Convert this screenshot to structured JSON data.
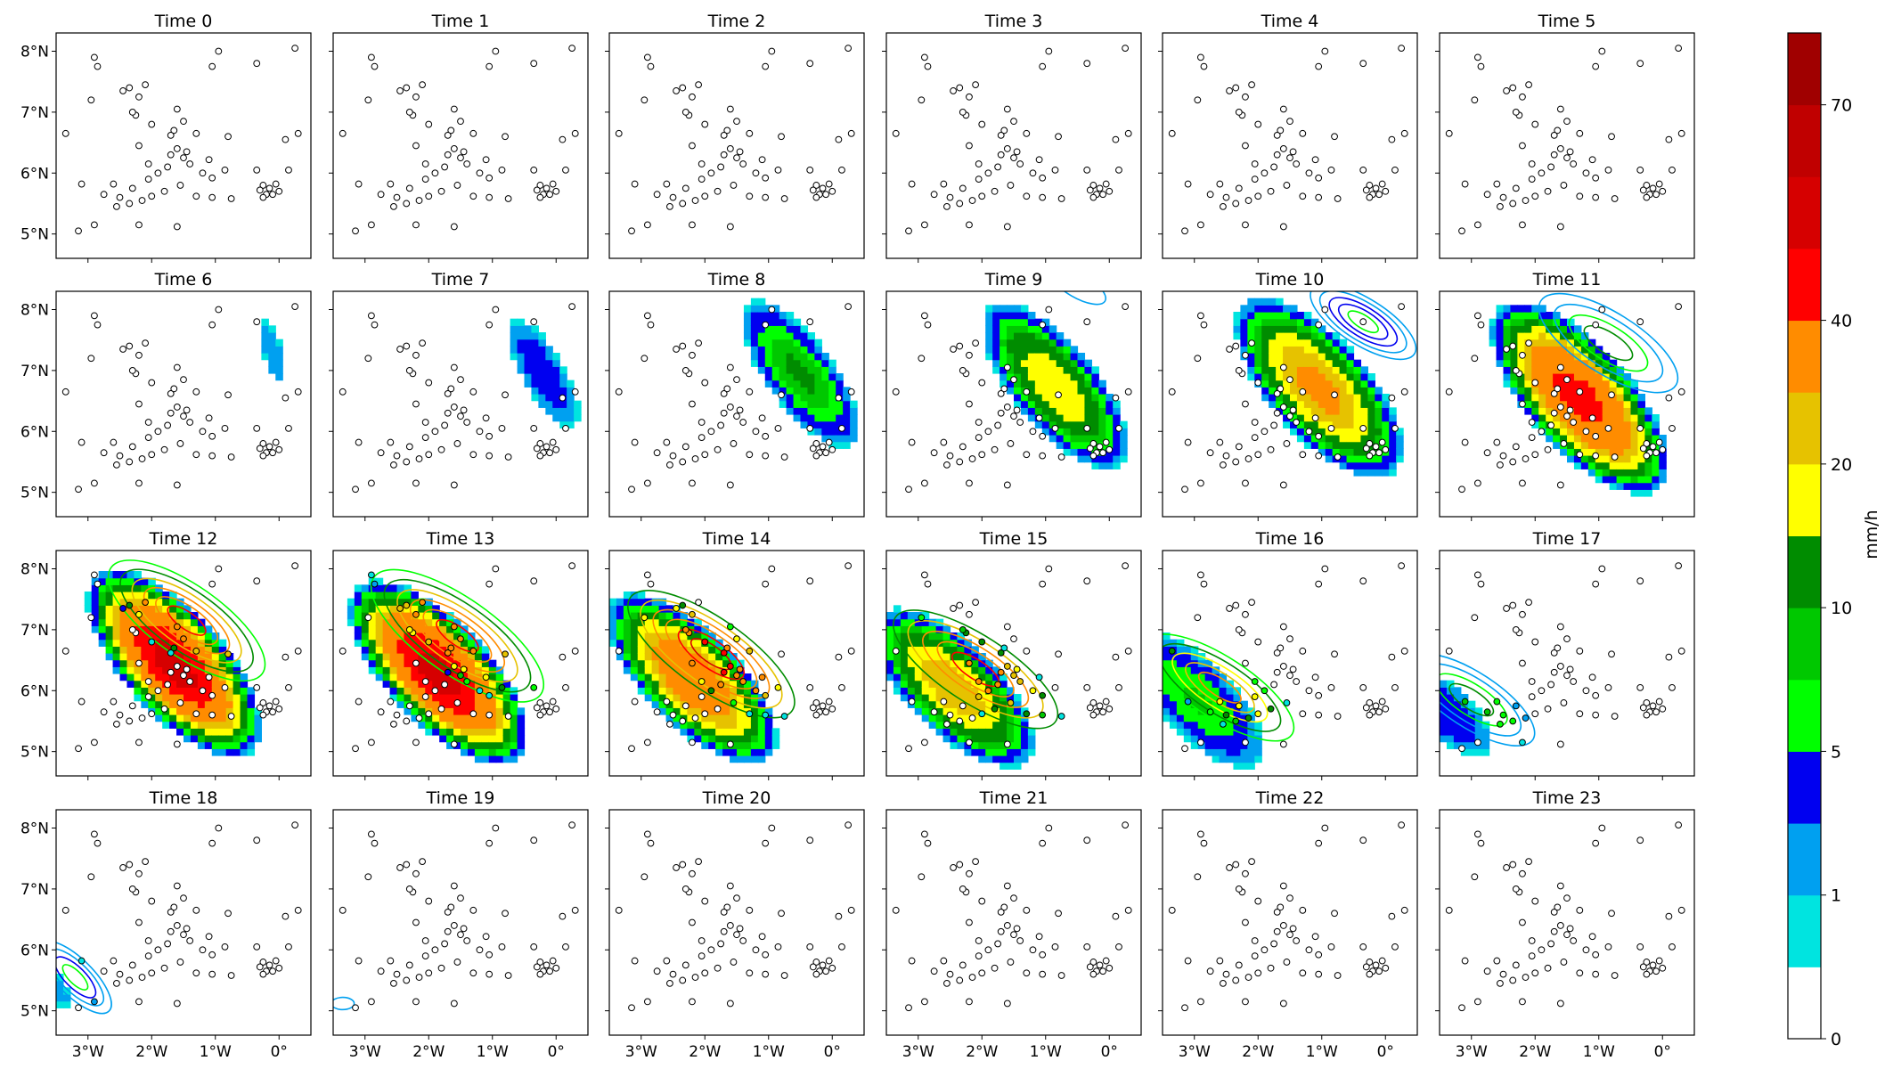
{
  "figure": {
    "colorbar_label": "mm/h",
    "colorbar_ticks": [
      "0",
      "1",
      "5",
      "10",
      "20",
      "40",
      "70"
    ],
    "colorbar_colors": [
      "#ffffff",
      "#00e4e0",
      "#00a0f0",
      "#0000f0",
      "#00ff00",
      "#00c800",
      "#008c00",
      "#ffff00",
      "#e6c200",
      "#ff8c00",
      "#ff0000",
      "#d60000",
      "#c00000",
      "#a00000"
    ],
    "x_tick_labels": [
      "3°W",
      "2°W",
      "1°W",
      "0°"
    ],
    "y_tick_labels": [
      "5°N",
      "6°N",
      "7°N",
      "8°N"
    ]
  },
  "chart_data": {
    "type": "heatmap",
    "title": "",
    "subplot_titles": [
      "Time 0",
      "Time 1",
      "Time 2",
      "Time 3",
      "Time 4",
      "Time 5",
      "Time 6",
      "Time 7",
      "Time 8",
      "Time 9",
      "Time 10",
      "Time 11",
      "Time 12",
      "Time 13",
      "Time 14",
      "Time 15",
      "Time 16",
      "Time 17",
      "Time 18",
      "Time 19",
      "Time 20",
      "Time 21",
      "Time 22",
      "Time 23"
    ],
    "xlim": [
      -3.5,
      0.5
    ],
    "ylim": [
      4.6,
      8.3
    ],
    "xticks": [
      -3,
      -2,
      -1,
      0
    ],
    "yticks": [
      5,
      6,
      7,
      8
    ],
    "colorbar": {
      "label": "mm/h",
      "levels": [
        0,
        0.5,
        1,
        2.5,
        5,
        7.5,
        10,
        15,
        20,
        25,
        40,
        50,
        60,
        70,
        80
      ],
      "tick_values": [
        0,
        1,
        5,
        10,
        20,
        40,
        70
      ]
    },
    "stations": [
      [
        -3.15,
        5.05
      ],
      [
        -2.9,
        5.15
      ],
      [
        -2.55,
        5.45
      ],
      [
        -2.2,
        5.15
      ],
      [
        -1.6,
        5.12
      ],
      [
        -2.75,
        5.65
      ],
      [
        -2.5,
        5.6
      ],
      [
        -2.35,
        5.5
      ],
      [
        -2.15,
        5.55
      ],
      [
        -2.0,
        5.62
      ],
      [
        -1.8,
        5.7
      ],
      [
        -1.55,
        5.8
      ],
      [
        -1.3,
        5.62
      ],
      [
        -1.05,
        5.6
      ],
      [
        -0.75,
        5.58
      ],
      [
        -3.35,
        6.65
      ],
      [
        -3.1,
        5.82
      ],
      [
        -2.6,
        5.82
      ],
      [
        -2.3,
        5.75
      ],
      [
        -2.05,
        5.9
      ],
      [
        -1.9,
        6.0
      ],
      [
        -1.75,
        6.1
      ],
      [
        -1.7,
        6.3
      ],
      [
        -1.5,
        6.25
      ],
      [
        -1.45,
        6.35
      ],
      [
        -1.4,
        6.15
      ],
      [
        -1.6,
        6.4
      ],
      [
        -1.2,
        6.0
      ],
      [
        -1.05,
        5.92
      ],
      [
        -0.85,
        6.05
      ],
      [
        -1.65,
        6.7
      ],
      [
        -1.7,
        6.62
      ],
      [
        -1.3,
        6.65
      ],
      [
        -1.5,
        6.85
      ],
      [
        -1.6,
        7.05
      ],
      [
        -1.1,
        6.22
      ],
      [
        -0.8,
        6.6
      ],
      [
        -2.25,
        6.95
      ],
      [
        -2.3,
        7.0
      ],
      [
        -2.2,
        6.45
      ],
      [
        -2.05,
        6.15
      ],
      [
        -2.1,
        7.45
      ],
      [
        -2.2,
        7.25
      ],
      [
        -2.35,
        7.4
      ],
      [
        -2.45,
        7.35
      ],
      [
        -2.0,
        6.8
      ],
      [
        -2.9,
        7.9
      ],
      [
        -2.85,
        7.75
      ],
      [
        -2.95,
        7.2
      ],
      [
        -1.05,
        7.75
      ],
      [
        -0.95,
        8.0
      ],
      [
        -0.35,
        7.8
      ],
      [
        0.25,
        8.05
      ],
      [
        0.1,
        6.55
      ],
      [
        0.3,
        6.65
      ],
      [
        0.15,
        6.05
      ],
      [
        -0.35,
        6.05
      ],
      [
        -0.25,
        5.8
      ],
      [
        -0.15,
        5.75
      ],
      [
        -0.05,
        5.82
      ],
      [
        -0.3,
        5.72
      ],
      [
        -0.2,
        5.65
      ],
      [
        -0.25,
        5.6
      ],
      [
        -0.1,
        5.65
      ],
      [
        0.0,
        5.7
      ]
    ],
    "panels": [
      {
        "time": 0,
        "rain": null,
        "contours": null
      },
      {
        "time": 1,
        "rain": null,
        "contours": null
      },
      {
        "time": 2,
        "rain": null,
        "contours": null
      },
      {
        "time": 3,
        "rain": null,
        "contours": null
      },
      {
        "time": 4,
        "rain": null,
        "contours": null
      },
      {
        "time": 5,
        "rain": null,
        "contours": null
      },
      {
        "time": 6,
        "rain": {
          "cx": -0.1,
          "cy": 7.3,
          "a": 0.65,
          "b": 0.18,
          "angle": -75,
          "peak": 2.4
        },
        "contours": null
      },
      {
        "time": 7,
        "rain": {
          "cx": -0.2,
          "cy": 6.95,
          "a": 1.15,
          "b": 0.38,
          "angle": -62,
          "peak": 4.8
        },
        "contours": null
      },
      {
        "time": 8,
        "rain": {
          "cx": -0.5,
          "cy": 6.95,
          "a": 1.55,
          "b": 0.58,
          "angle": -55,
          "peak": 11
        },
        "contours": null
      },
      {
        "time": 9,
        "rain": {
          "cx": -0.85,
          "cy": 6.75,
          "a": 1.75,
          "b": 0.7,
          "angle": -52,
          "peak": 20
        },
        "contours": {
          "cx": -0.5,
          "cy": 8.4,
          "a": 0.5,
          "b": 0.2,
          "angle": -30,
          "levels": [
            1
          ]
        }
      },
      {
        "time": 10,
        "rain": {
          "cx": -1.05,
          "cy": 6.72,
          "a": 1.9,
          "b": 0.82,
          "angle": -50,
          "peak": 28
        },
        "contours": {
          "cx": -0.35,
          "cy": 7.8,
          "a": 0.95,
          "b": 0.38,
          "angle": -32,
          "levels": [
            1,
            2,
            3,
            4,
            5
          ]
        }
      },
      {
        "time": 11,
        "rain": {
          "cx": -1.3,
          "cy": 6.55,
          "a": 2.0,
          "b": 0.85,
          "angle": -50,
          "peak": 45
        },
        "contours": {
          "cx": -0.85,
          "cy": 7.45,
          "a": 1.25,
          "b": 0.5,
          "angle": -32,
          "levels": [
            1,
            2,
            5,
            10
          ]
        }
      },
      {
        "time": 12,
        "rain": {
          "cx": -1.65,
          "cy": 6.45,
          "a": 1.95,
          "b": 0.83,
          "angle": -50,
          "peak": 55
        },
        "contours": {
          "cx": -1.45,
          "cy": 7.15,
          "a": 1.45,
          "b": 0.58,
          "angle": -35,
          "levels": [
            5,
            10,
            20,
            25,
            30,
            40
          ]
        }
      },
      {
        "time": 13,
        "rain": {
          "cx": -1.85,
          "cy": 6.3,
          "a": 1.95,
          "b": 0.83,
          "angle": -48,
          "peak": 55
        },
        "contours": {
          "cx": -1.55,
          "cy": 6.9,
          "a": 1.6,
          "b": 0.62,
          "angle": -35,
          "levels": [
            5,
            10,
            20,
            25,
            30,
            40
          ]
        }
      },
      {
        "time": 14,
        "rain": {
          "cx": -2.2,
          "cy": 6.2,
          "a": 1.85,
          "b": 0.78,
          "angle": -47,
          "peak": 35
        },
        "contours": {
          "cx": -1.9,
          "cy": 6.6,
          "a": 1.55,
          "b": 0.58,
          "angle": -35,
          "levels": [
            10,
            20,
            25,
            30,
            40,
            50
          ]
        }
      },
      {
        "time": 15,
        "rain": {
          "cx": -2.45,
          "cy": 6.05,
          "a": 1.75,
          "b": 0.75,
          "angle": -46,
          "peak": 25
        },
        "contours": {
          "cx": -2.1,
          "cy": 6.35,
          "a": 1.5,
          "b": 0.55,
          "angle": -33,
          "levels": [
            10,
            20,
            25,
            30,
            40
          ]
        }
      },
      {
        "time": 16,
        "rain": {
          "cx": -2.95,
          "cy": 5.85,
          "a": 1.55,
          "b": 0.65,
          "angle": -48,
          "peak": 8
        },
        "contours": {
          "cx": -2.6,
          "cy": 6.05,
          "a": 1.35,
          "b": 0.5,
          "angle": -33,
          "levels": [
            5,
            10,
            15,
            20,
            25
          ]
        }
      },
      {
        "time": 17,
        "rain": {
          "cx": -3.4,
          "cy": 5.65,
          "a": 1.05,
          "b": 0.48,
          "angle": -45,
          "peak": 5
        },
        "contours": {
          "cx": -3.0,
          "cy": 5.85,
          "a": 1.15,
          "b": 0.45,
          "angle": -33,
          "levels": [
            1,
            2,
            5,
            10
          ]
        }
      },
      {
        "time": 18,
        "rain": {
          "cx": -3.6,
          "cy": 5.4,
          "a": 0.6,
          "b": 0.3,
          "angle": -45,
          "peak": 2
        },
        "contours": {
          "cx": -3.2,
          "cy": 5.55,
          "a": 0.75,
          "b": 0.3,
          "angle": -45,
          "levels": [
            1,
            2,
            3,
            5
          ]
        }
      },
      {
        "time": 19,
        "rain": null,
        "contours": {
          "cx": -3.35,
          "cy": 5.12,
          "a": 0.18,
          "b": 0.1,
          "angle": 0,
          "levels": [
            1
          ]
        }
      },
      {
        "time": 20,
        "rain": null,
        "contours": null
      },
      {
        "time": 21,
        "rain": null,
        "contours": null
      },
      {
        "time": 22,
        "rain": null,
        "contours": null
      },
      {
        "time": 23,
        "rain": null,
        "contours": null
      }
    ]
  }
}
